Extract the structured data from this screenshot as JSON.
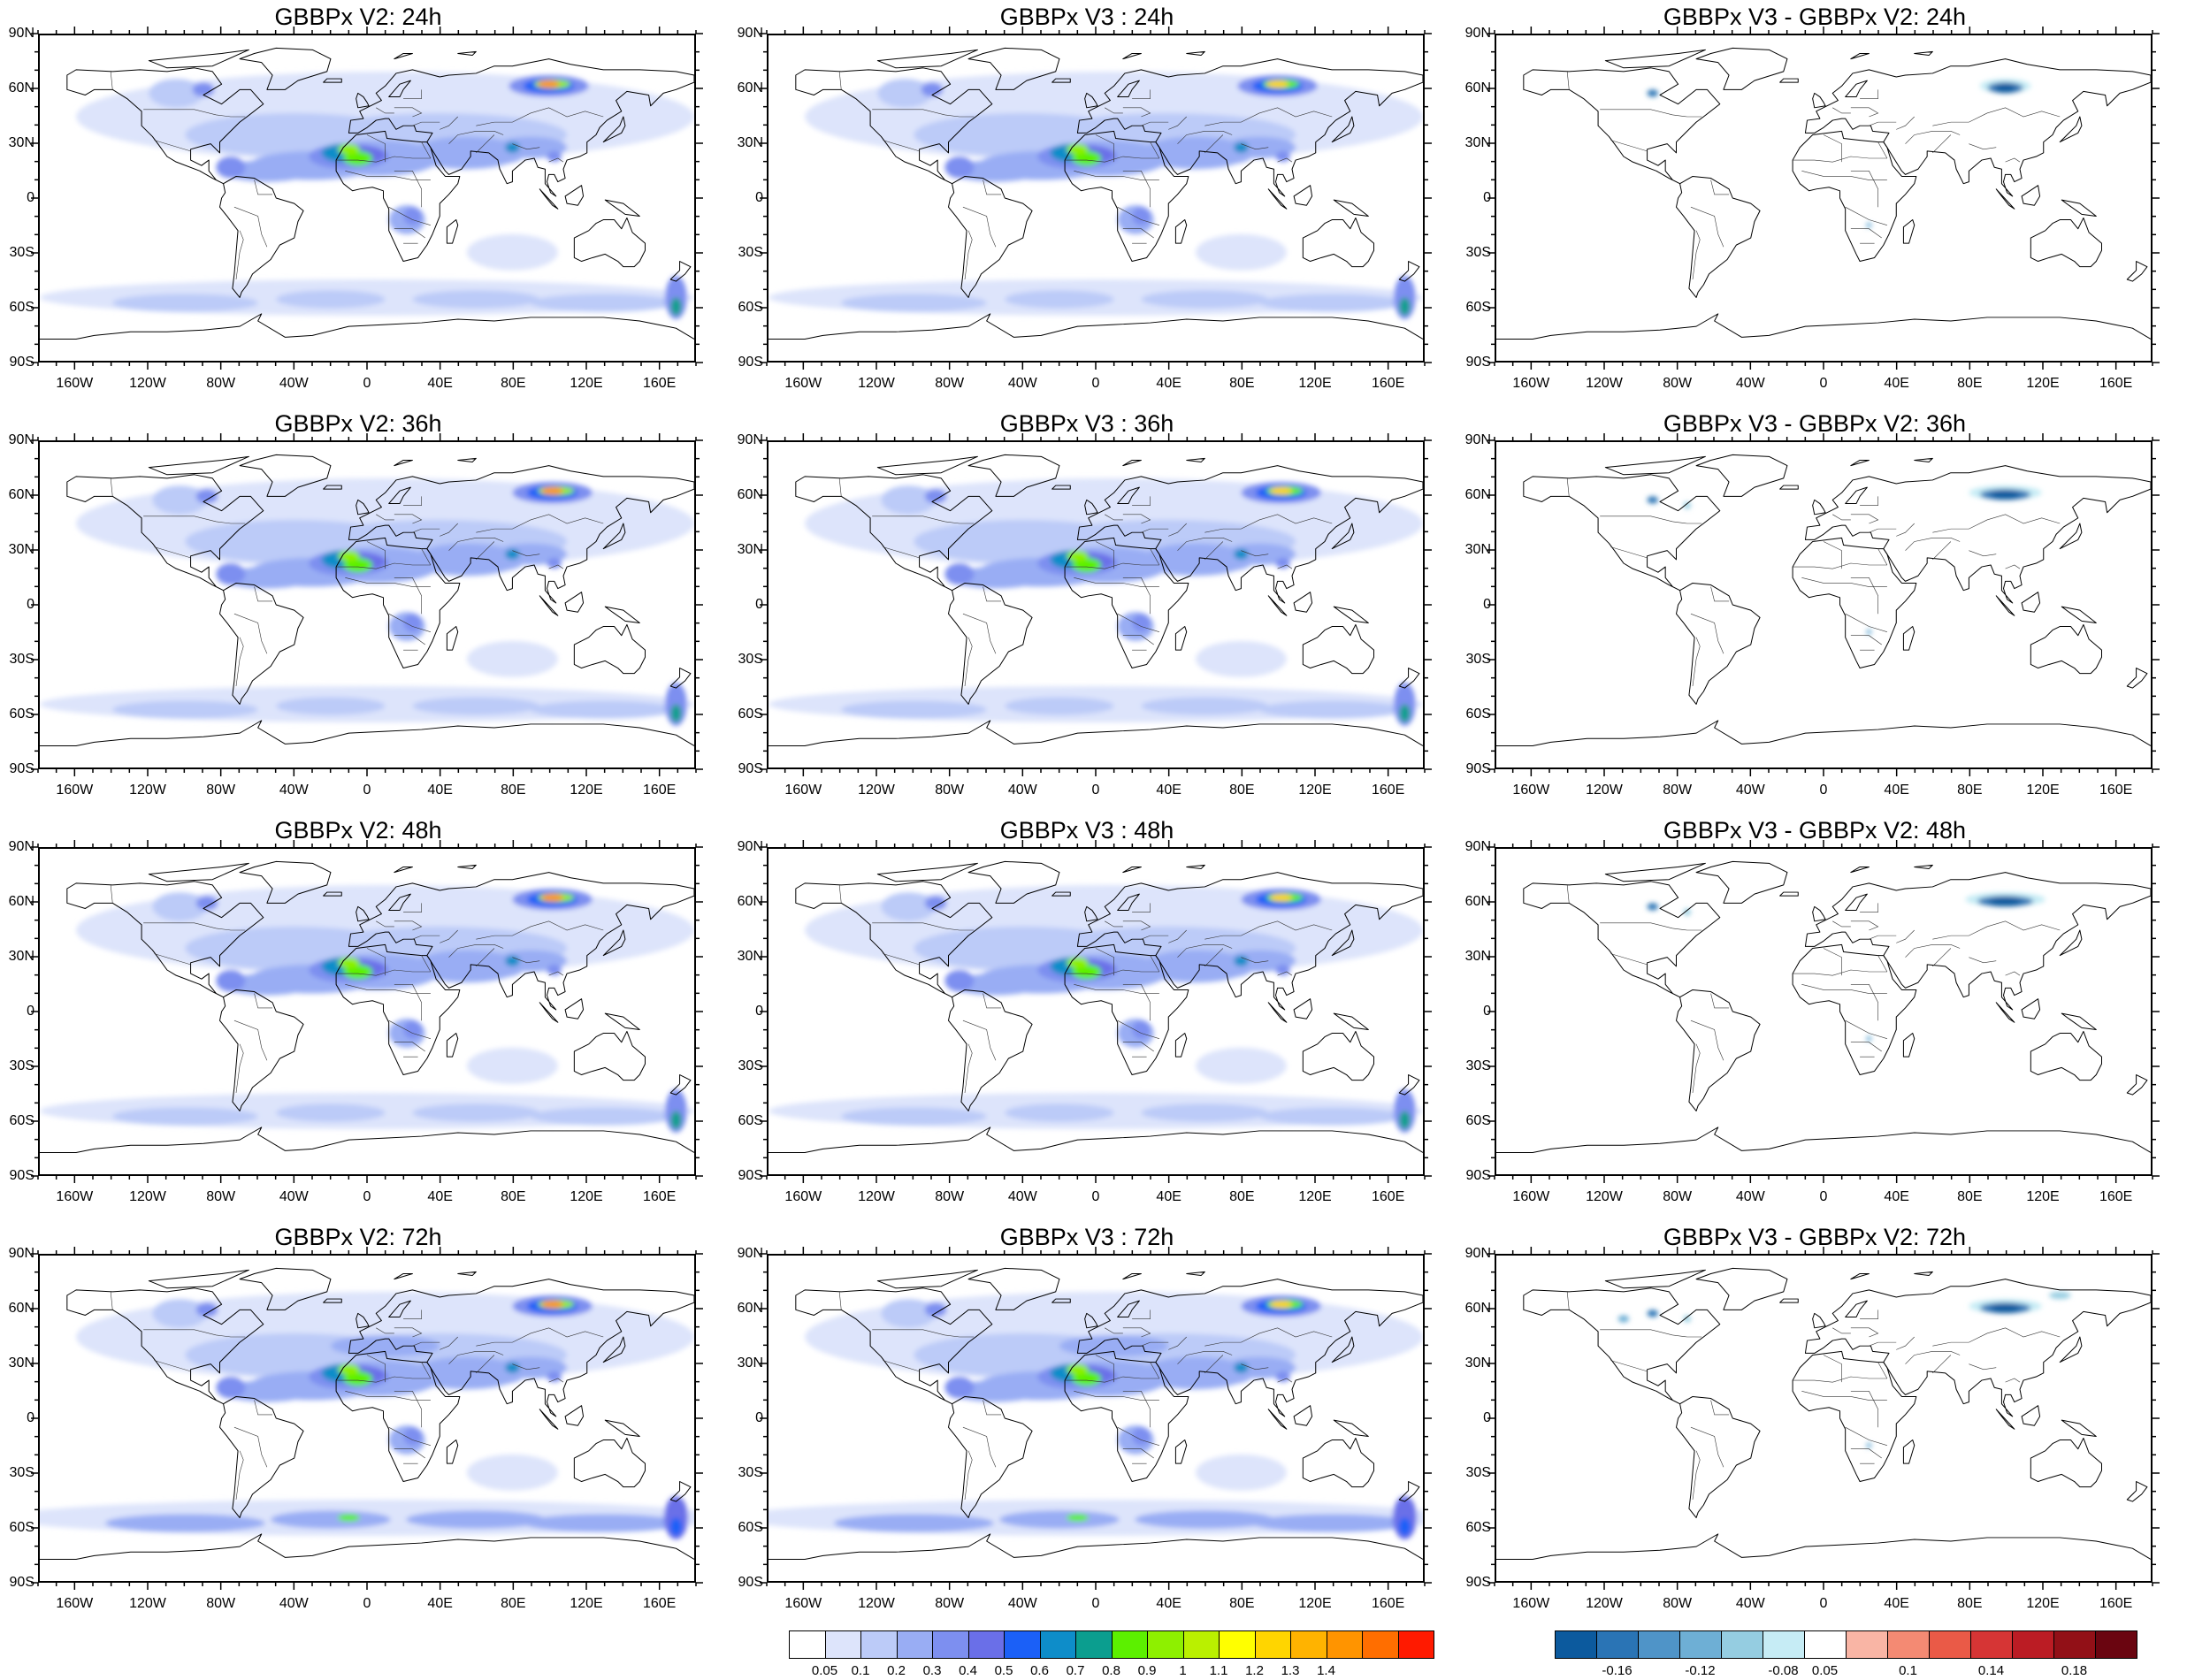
{
  "lat_labels": [
    "90N",
    "60N",
    "30N",
    "0",
    "30S",
    "60S",
    "90S"
  ],
  "lon_labels": [
    "160W",
    "120W",
    "80W",
    "40W",
    "0",
    "40E",
    "80E",
    "120E",
    "160E"
  ],
  "panels": [
    {
      "title": "GBBPx V2: 24h",
      "kind": "field",
      "hour": 24,
      "version": "V2"
    },
    {
      "title": "GBBPx V3 : 24h",
      "kind": "field",
      "hour": 24,
      "version": "V3"
    },
    {
      "title": "GBBPx V3 - GBBPx V2: 24h",
      "kind": "diff",
      "hour": 24
    },
    {
      "title": "GBBPx V2: 36h",
      "kind": "field",
      "hour": 36,
      "version": "V2"
    },
    {
      "title": "GBBPx V3 : 36h",
      "kind": "field",
      "hour": 36,
      "version": "V3"
    },
    {
      "title": "GBBPx V3 - GBBPx V2: 36h",
      "kind": "diff",
      "hour": 36
    },
    {
      "title": "GBBPx V2: 48h",
      "kind": "field",
      "hour": 48,
      "version": "V2"
    },
    {
      "title": "GBBPx V3 : 48h",
      "kind": "field",
      "hour": 48,
      "version": "V3"
    },
    {
      "title": "GBBPx V3 - GBBPx V2: 48h",
      "kind": "diff",
      "hour": 48
    },
    {
      "title": "GBBPx V2: 72h",
      "kind": "field",
      "hour": 72,
      "version": "V2"
    },
    {
      "title": "GBBPx V3 : 72h",
      "kind": "field",
      "hour": 72,
      "version": "V3"
    },
    {
      "title": "GBBPx V3 - GBBPx V2: 72h",
      "kind": "diff",
      "hour": 72
    }
  ],
  "colorbar_main": {
    "colors": [
      "#ffffff",
      "#dde4fb",
      "#bccbf8",
      "#99adf4",
      "#7d8ff0",
      "#6a6fe8",
      "#1b60f7",
      "#0e8dc9",
      "#0b9e8f",
      "#5cf000",
      "#8ef000",
      "#baf000",
      "#ffff00",
      "#ffd500",
      "#ffb300",
      "#ff9400",
      "#ff6e00",
      "#ff1a00"
    ],
    "labels": [
      "0.05",
      "0.1",
      "0.2",
      "0.3",
      "0.4",
      "0.5",
      "0.6",
      "0.7",
      "0.8",
      "0.9",
      "1",
      "1.1",
      "1.2",
      "1.3",
      "1.4"
    ]
  },
  "colorbar_diff": {
    "colors": [
      "#0c5a9e",
      "#2a74b5",
      "#4f94c8",
      "#6eafd5",
      "#95cde1",
      "#c6ecf5",
      "#ffffff",
      "#f9b5a5",
      "#f48a73",
      "#ea5a47",
      "#d63535",
      "#bb1c24",
      "#921017",
      "#6a0510"
    ],
    "labels": [
      "-0.16",
      "-0.12",
      "-0.08",
      "0.05",
      "0.1",
      "0.14",
      "0.18"
    ]
  }
}
